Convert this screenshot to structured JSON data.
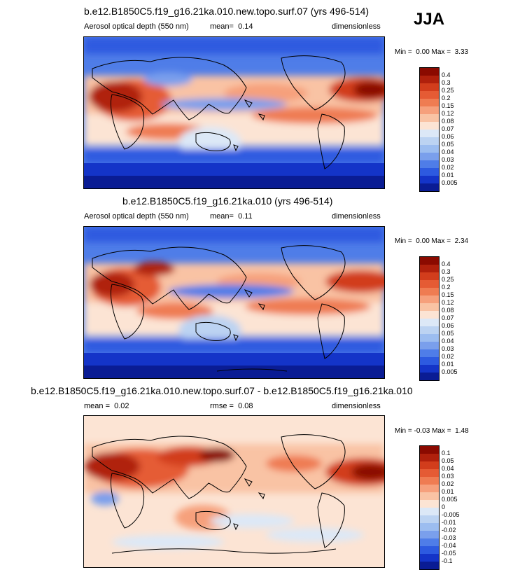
{
  "season": "JJA",
  "panels": [
    {
      "id": "test",
      "title": "b.e12.B1850C5.f19_g16.21ka.010.new.topo.surf.07 (yrs 496-514)",
      "left_label": "Aerosol optical depth (550 nm)",
      "mean_label": "mean=",
      "mean_value": "0.14",
      "units": "dimensionless",
      "min_label": "Min =",
      "min_value": "0.00",
      "max_label": "Max =",
      "max_value": "3.33",
      "colorbar_levels": [
        "0.4",
        "0.3",
        "0.25",
        "0.2",
        "0.15",
        "0.12",
        "0.08",
        "0.07",
        "0.06",
        "0.05",
        "0.04",
        "0.03",
        "0.02",
        "0.01",
        "0.005"
      ],
      "colorbar_colors": [
        "#8b0a00",
        "#b0200c",
        "#d23d1c",
        "#e55b34",
        "#ef7c52",
        "#f6a07c",
        "#f9c3a4",
        "#fce4d4",
        "#dce8f7",
        "#bcd3f2",
        "#9cbdf0",
        "#7a9fec",
        "#4f7de8",
        "#2d5ae0",
        "#1434c8",
        "#0a1c94"
      ]
    },
    {
      "id": "control",
      "title": "b.e12.B1850C5.f19_g16.21ka.010 (yrs 496-514)",
      "left_label": "Aerosol optical depth (550 nm)",
      "mean_label": "mean=",
      "mean_value": "0.11",
      "units": "dimensionless",
      "min_label": "Min =",
      "min_value": "0.00",
      "max_label": "Max =",
      "max_value": "2.34",
      "colorbar_levels": [
        "0.4",
        "0.3",
        "0.25",
        "0.2",
        "0.15",
        "0.12",
        "0.08",
        "0.07",
        "0.06",
        "0.05",
        "0.04",
        "0.03",
        "0.02",
        "0.01",
        "0.005"
      ],
      "colorbar_colors": [
        "#8b0a00",
        "#b0200c",
        "#d23d1c",
        "#e55b34",
        "#ef7c52",
        "#f6a07c",
        "#f9c3a4",
        "#fce4d4",
        "#dce8f7",
        "#bcd3f2",
        "#9cbdf0",
        "#7a9fec",
        "#4f7de8",
        "#2d5ae0",
        "#1434c8",
        "#0a1c94"
      ]
    },
    {
      "id": "difference",
      "title": "b.e12.B1850C5.f19_g16.21ka.010.new.topo.surf.07 - b.e12.B1850C5.f19_g16.21ka.010",
      "left_label": "mean =",
      "left_value": "0.02",
      "mid_label": "rmse =",
      "mid_value": "0.08",
      "units": "dimensionless",
      "min_label": "Min =",
      "min_value": "-0.03",
      "max_label": "Max =",
      "max_value": "1.48",
      "colorbar_levels": [
        "0.1",
        "0.05",
        "0.04",
        "0.03",
        "0.02",
        "0.01",
        "0.005",
        "0",
        "-0.005",
        "-0.01",
        "-0.02",
        "-0.03",
        "-0.04",
        "-0.05",
        "-0.1"
      ],
      "colorbar_colors": [
        "#8b0a00",
        "#b0200c",
        "#d23d1c",
        "#e55b34",
        "#ef7c52",
        "#f6a07c",
        "#f9c3a4",
        "#fce4d4",
        "#dce8f7",
        "#bcd3f2",
        "#9cbdf0",
        "#7a9fec",
        "#4f7de8",
        "#2d5ae0",
        "#1434c8",
        "#0a1c94"
      ]
    }
  ]
}
